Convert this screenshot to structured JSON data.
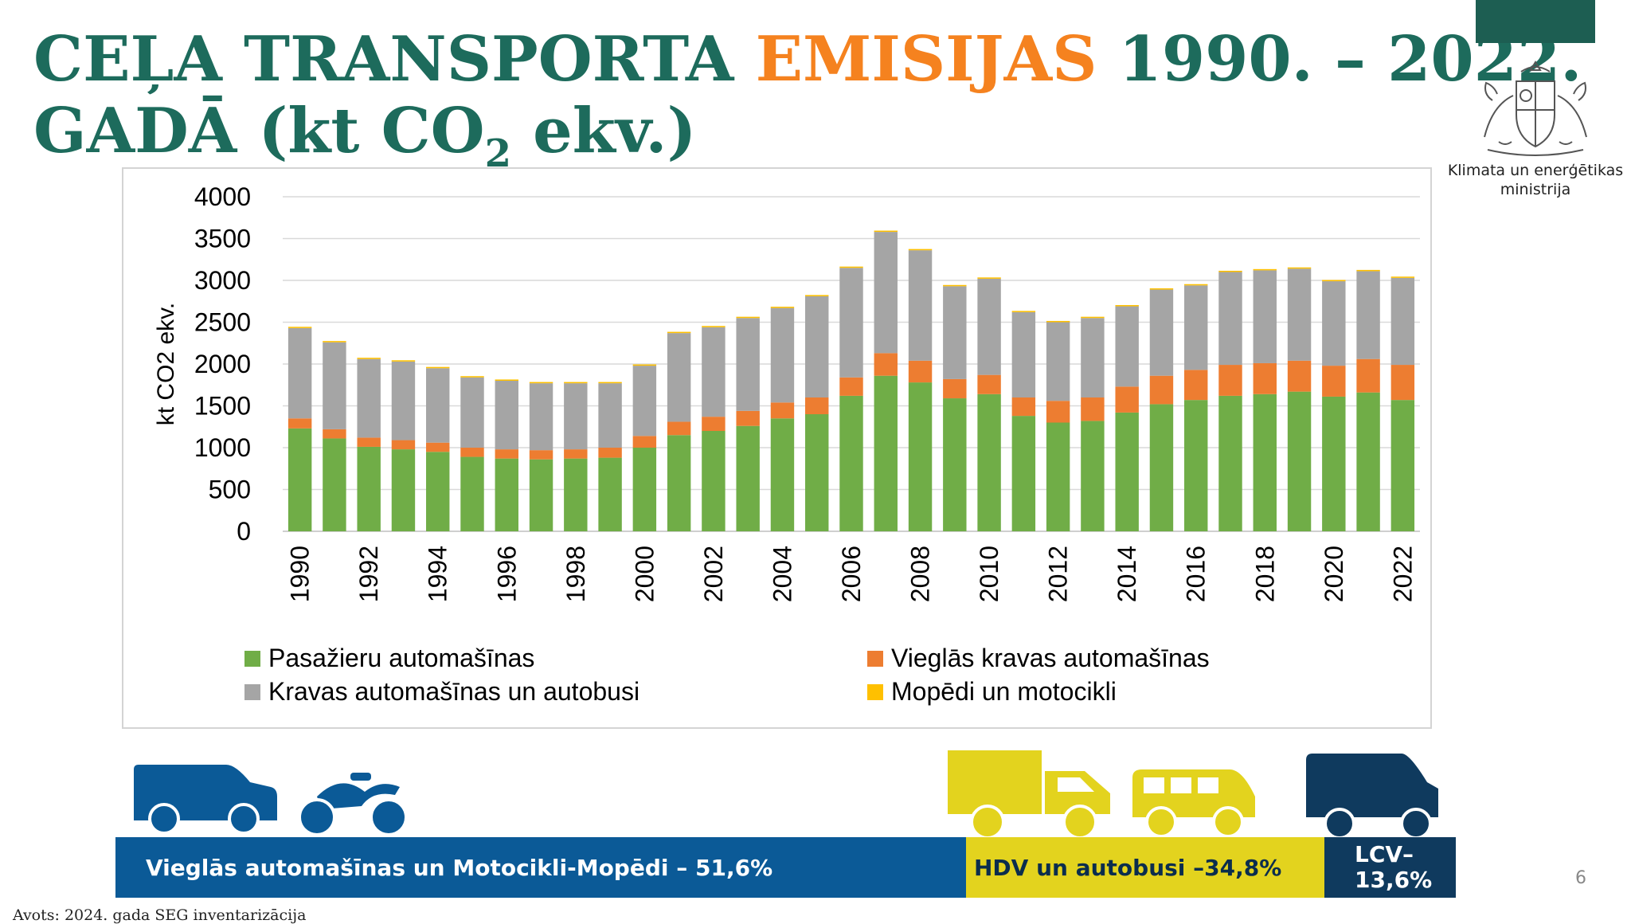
{
  "title": {
    "part1": "CEĻA TRANSPORTA ",
    "accent": "EMISIJAS",
    "part2": " 1990. – 2022.",
    "line2_a": "GADĀ (kt CO",
    "line2_sub": "2",
    "line2_b": " ekv.)"
  },
  "ministry": {
    "line1": "Klimata un enerģētikas",
    "line2": "ministrija"
  },
  "colors": {
    "title": "#1d6b5c",
    "accent": "#f5821f",
    "passenger": "#70ad47",
    "lcv": "#ed7d31",
    "hdv": "#a5a5a5",
    "moped": "#ffc000",
    "banner_blue": "#0b5a97",
    "banner_yellow": "#e3d31e",
    "banner_navy": "#0f3a5e"
  },
  "chart_data": {
    "type": "bar",
    "stacked": true,
    "ylabel": "kt CO2 ekv.",
    "ylim": [
      0,
      4000
    ],
    "yticks": [
      0,
      500,
      1000,
      1500,
      2000,
      2500,
      3000,
      3500,
      4000
    ],
    "grid": true,
    "legend_position": "bottom",
    "categories": [
      "1990",
      "1991",
      "1992",
      "1993",
      "1994",
      "1995",
      "1996",
      "1997",
      "1998",
      "1999",
      "2000",
      "2001",
      "2002",
      "2003",
      "2004",
      "2005",
      "2006",
      "2007",
      "2008",
      "2009",
      "2010",
      "2011",
      "2012",
      "2013",
      "2014",
      "2015",
      "2016",
      "2017",
      "2018",
      "2019",
      "2020",
      "2021",
      "2022"
    ],
    "xtick_labels": [
      "1990",
      "1992",
      "1994",
      "1996",
      "1998",
      "2000",
      "2002",
      "2004",
      "2006",
      "2008",
      "2010",
      "2012",
      "2014",
      "2016",
      "2018",
      "2020",
      "2022"
    ],
    "series": [
      {
        "name": "Pasažieru automašīnas",
        "color": "#70ad47",
        "values": [
          1230,
          1110,
          1010,
          980,
          950,
          890,
          870,
          860,
          870,
          880,
          1000,
          1150,
          1200,
          1260,
          1350,
          1400,
          1620,
          1860,
          1780,
          1590,
          1640,
          1380,
          1300,
          1320,
          1420,
          1520,
          1570,
          1620,
          1640,
          1670,
          1610,
          1660,
          1570
        ]
      },
      {
        "name": "Vieglās kravas automašīnas",
        "color": "#ed7d31",
        "values": [
          120,
          110,
          110,
          110,
          110,
          110,
          110,
          110,
          110,
          120,
          140,
          160,
          170,
          180,
          190,
          200,
          220,
          270,
          260,
          230,
          230,
          220,
          260,
          280,
          310,
          340,
          360,
          370,
          370,
          370,
          370,
          400,
          420
        ]
      },
      {
        "name": "Kravas automašīnas un autobusi",
        "color": "#a5a5a5",
        "values": [
          1080,
          1040,
          940,
          940,
          890,
          840,
          820,
          800,
          790,
          770,
          840,
          1060,
          1070,
          1110,
          1130,
          1210,
          1310,
          1450,
          1320,
          1110,
          1150,
          1020,
          940,
          950,
          960,
          1030,
          1010,
          1110,
          1110,
          1100,
          1010,
          1050,
          1040
        ]
      },
      {
        "name": "Mopēdi un motocikli",
        "color": "#ffc000",
        "values": [
          15,
          15,
          15,
          15,
          15,
          15,
          15,
          15,
          15,
          15,
          15,
          15,
          15,
          15,
          15,
          15,
          15,
          15,
          15,
          15,
          15,
          15,
          15,
          15,
          15,
          15,
          15,
          15,
          15,
          15,
          15,
          15,
          15
        ]
      }
    ]
  },
  "banner": {
    "blue": "Vieglās automašīnas un Motocikli-Mopēdi – 51,6%",
    "yellow": "HDV un autobusi –34,8%",
    "navy_line1": "LCV–",
    "navy_line2": "13,6%"
  },
  "page_number": "6",
  "source": "Avots: 2024. gada SEG inventarizācija"
}
